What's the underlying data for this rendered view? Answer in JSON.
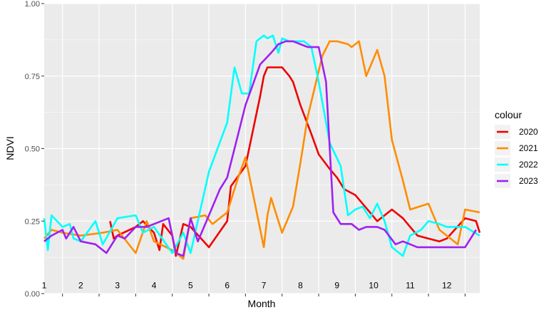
{
  "chart_data": {
    "type": "line",
    "xlabel": "Month",
    "ylabel": "NDVI",
    "xlim": [
      1,
      12.9
    ],
    "ylim": [
      0,
      1
    ],
    "yticks": [
      0.0,
      0.25,
      0.5,
      0.75,
      1.0
    ],
    "ytick_labels": [
      "0.00",
      "0.25",
      "0.50",
      "0.75",
      "1.00"
    ],
    "month_labels": [
      "1",
      "2",
      "3",
      "4",
      "5",
      "6",
      "7",
      "8",
      "9",
      "10",
      "11",
      "12"
    ],
    "grid": true,
    "background": "#ebebeb",
    "legend": {
      "title": "colour",
      "position": "right"
    },
    "series": [
      {
        "name": "2020",
        "color": "#ee0000",
        "x": [
          2.8,
          2.9,
          3.0,
          3.5,
          3.7,
          4.0,
          4.15,
          4.25,
          4.5,
          4.6,
          4.8,
          5.0,
          5.5,
          6.0,
          6.1,
          6.5,
          6.9,
          7.0,
          7.1,
          7.3,
          7.5,
          7.7,
          7.8,
          8.0,
          8.3,
          8.5,
          8.8,
          9.0,
          9.2,
          9.5,
          9.7,
          9.9,
          10.1,
          10.5,
          10.8,
          11.0,
          11.2,
          11.5,
          11.8,
          12.0,
          12.5,
          12.8,
          12.9
        ],
        "y": [
          0.25,
          0.19,
          0.2,
          0.23,
          0.25,
          0.21,
          0.15,
          0.24,
          0.2,
          0.13,
          0.24,
          0.23,
          0.16,
          0.25,
          0.37,
          0.44,
          0.68,
          0.75,
          0.78,
          0.78,
          0.78,
          0.75,
          0.73,
          0.65,
          0.55,
          0.48,
          0.43,
          0.4,
          0.36,
          0.34,
          0.31,
          0.28,
          0.25,
          0.29,
          0.26,
          0.23,
          0.2,
          0.19,
          0.18,
          0.19,
          0.26,
          0.25,
          0.21
        ]
      },
      {
        "name": "2021",
        "color": "#ff8c00",
        "x": [
          1.0,
          1.2,
          1.5,
          2.0,
          2.6,
          3.0,
          3.5,
          3.8,
          4.0,
          4.5,
          4.8,
          5.0,
          5.4,
          5.6,
          6.0,
          6.3,
          6.5,
          7.0,
          7.1,
          7.2,
          7.5,
          7.8,
          8.0,
          8.2,
          8.6,
          8.8,
          9.0,
          9.3,
          9.4,
          9.6,
          9.8,
          10.1,
          10.3,
          10.5,
          10.8,
          11.0,
          11.5,
          11.8,
          12.0,
          12.3,
          12.5,
          12.9
        ],
        "y": [
          0.19,
          0.22,
          0.21,
          0.2,
          0.21,
          0.22,
          0.14,
          0.25,
          0.18,
          0.15,
          0.12,
          0.26,
          0.27,
          0.24,
          0.28,
          0.4,
          0.47,
          0.16,
          0.27,
          0.33,
          0.21,
          0.3,
          0.45,
          0.61,
          0.82,
          0.87,
          0.87,
          0.86,
          0.85,
          0.87,
          0.75,
          0.84,
          0.75,
          0.53,
          0.39,
          0.29,
          0.31,
          0.22,
          0.2,
          0.17,
          0.29,
          0.28
        ]
      },
      {
        "name": "2022",
        "color": "#00ffff",
        "x": [
          1.0,
          1.1,
          1.2,
          1.5,
          1.7,
          1.8,
          2.0,
          2.4,
          2.6,
          3.0,
          3.5,
          3.7,
          4.0,
          4.5,
          4.8,
          5.0,
          5.5,
          6.0,
          6.2,
          6.4,
          6.6,
          6.8,
          6.9,
          7.0,
          7.1,
          7.25,
          7.4,
          7.5,
          7.7,
          7.9,
          8.1,
          8.3,
          8.5,
          8.8,
          9.1,
          9.3,
          9.5,
          9.7,
          9.9,
          10.1,
          10.3,
          10.5,
          10.8,
          11.0,
          11.3,
          11.5,
          11.8,
          12.0,
          12.5,
          12.9
        ],
        "y": [
          0.26,
          0.15,
          0.27,
          0.23,
          0.24,
          0.19,
          0.18,
          0.25,
          0.17,
          0.26,
          0.27,
          0.21,
          0.23,
          0.14,
          0.21,
          0.14,
          0.42,
          0.59,
          0.78,
          0.69,
          0.69,
          0.87,
          0.88,
          0.89,
          0.88,
          0.89,
          0.83,
          0.88,
          0.87,
          0.87,
          0.87,
          0.85,
          0.73,
          0.52,
          0.44,
          0.27,
          0.29,
          0.3,
          0.26,
          0.31,
          0.25,
          0.16,
          0.13,
          0.2,
          0.22,
          0.25,
          0.24,
          0.23,
          0.23,
          0.2
        ]
      },
      {
        "name": "2023",
        "color": "#a020f0",
        "x": [
          1.0,
          1.2,
          1.5,
          1.6,
          1.8,
          2.0,
          2.4,
          2.7,
          3.0,
          3.2,
          3.5,
          3.8,
          4.0,
          4.4,
          4.6,
          4.8,
          5.0,
          5.2,
          5.5,
          5.8,
          6.0,
          6.5,
          6.9,
          7.2,
          7.4,
          7.6,
          7.8,
          8.0,
          8.2,
          8.5,
          8.7,
          8.9,
          9.1,
          9.4,
          9.6,
          9.8,
          10.1,
          10.3,
          10.6,
          10.8,
          11.2,
          11.5,
          12.0,
          12.5,
          12.8
        ],
        "y": [
          0.18,
          0.2,
          0.22,
          0.19,
          0.23,
          0.18,
          0.17,
          0.14,
          0.2,
          0.19,
          0.23,
          0.23,
          0.24,
          0.26,
          0.14,
          0.13,
          0.26,
          0.18,
          0.27,
          0.36,
          0.4,
          0.65,
          0.79,
          0.83,
          0.86,
          0.87,
          0.87,
          0.86,
          0.85,
          0.85,
          0.73,
          0.28,
          0.24,
          0.24,
          0.22,
          0.23,
          0.23,
          0.22,
          0.17,
          0.18,
          0.16,
          0.16,
          0.16,
          0.16,
          0.22
        ]
      }
    ]
  }
}
